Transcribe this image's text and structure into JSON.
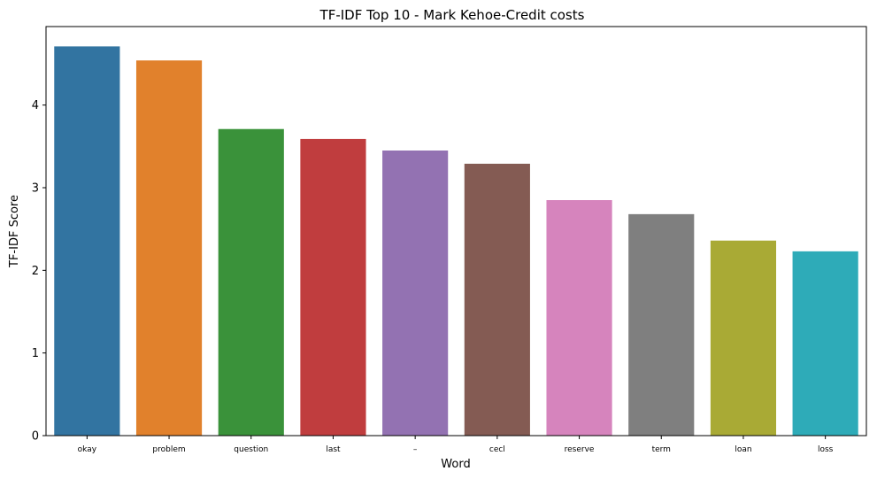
{
  "chart_data": {
    "type": "bar",
    "title": "TF-IDF Top 10 - Mark Kehoe-Credit costs",
    "xlabel": "Word",
    "ylabel": "TF-IDF Score",
    "categories": [
      "okay",
      "problem",
      "question",
      "last",
      "–",
      "cecl",
      "reserve",
      "term",
      "loan",
      "loss"
    ],
    "values": [
      4.71,
      4.54,
      3.71,
      3.59,
      3.45,
      3.29,
      2.85,
      2.68,
      2.36,
      2.23
    ],
    "colors": [
      "#3274a1",
      "#e1812c",
      "#3a923a",
      "#c03d3e",
      "#9372b2",
      "#845b53",
      "#d684bd",
      "#7f7f7f",
      "#a9aa35",
      "#2eabb8"
    ],
    "yticks": [
      0,
      1,
      2,
      3,
      4
    ],
    "ylim": [
      0,
      4.95
    ],
    "grid": false,
    "legend": "none"
  }
}
